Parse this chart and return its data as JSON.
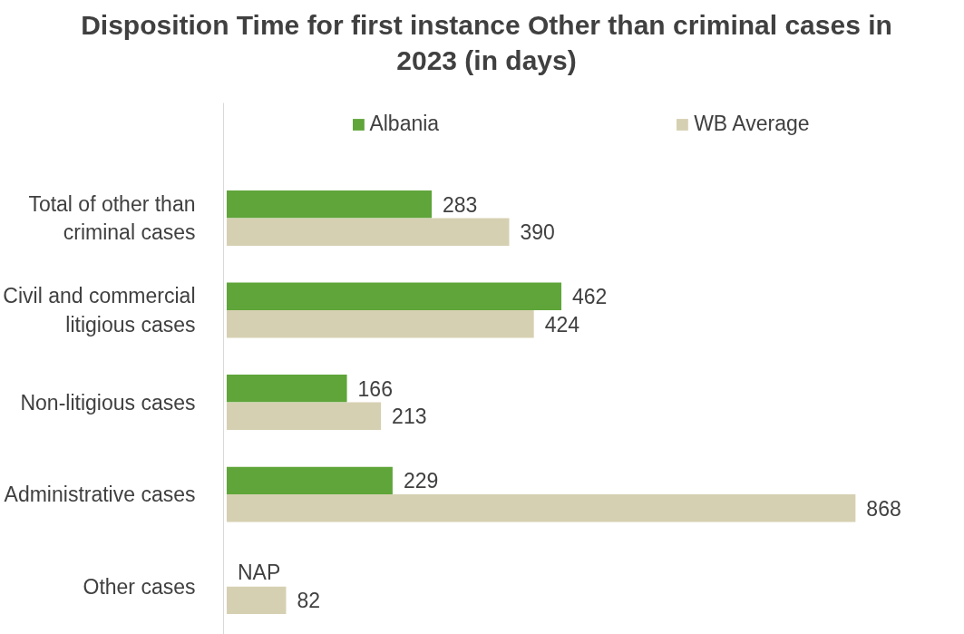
{
  "chart_data": {
    "type": "bar",
    "orientation": "horizontal",
    "title": "Disposition Time for first instance Other than criminal cases in 2023 (in days)",
    "categories": [
      "Total of other than criminal cases",
      "Civil and commercial litigious cases",
      "Non-litigious cases",
      "Administrative cases",
      "Other cases"
    ],
    "series": [
      {
        "name": "Albania",
        "color": "#5fa53a",
        "values": [
          283,
          462,
          166,
          229,
          null
        ],
        "value_labels": [
          "283",
          "462",
          "166",
          "229",
          "NAP"
        ]
      },
      {
        "name": "WB Average",
        "color": "#d6d0b2",
        "values": [
          390,
          424,
          213,
          868,
          82
        ],
        "value_labels": [
          "390",
          "424",
          "213",
          "868",
          "82"
        ]
      }
    ],
    "legend": "top",
    "grid": false
  }
}
